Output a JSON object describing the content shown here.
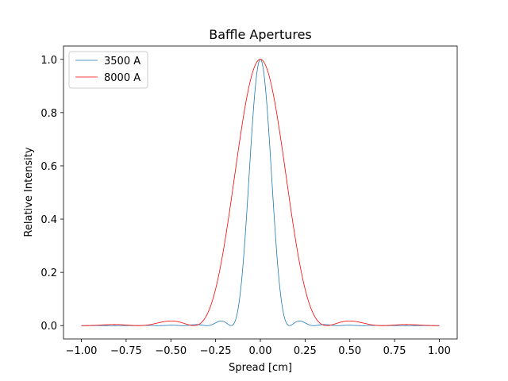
{
  "chart_data": {
    "type": "line",
    "title": "Baffle Apertures",
    "xlabel": "Spread [cm]",
    "ylabel": "Relative Intensity",
    "xlim": [
      -1.1,
      1.1
    ],
    "ylim": [
      -0.05,
      1.05
    ],
    "grid": false,
    "legend_position": "top-left",
    "xticks": [
      -1.0,
      -0.75,
      -0.5,
      -0.25,
      0.0,
      0.25,
      0.5,
      0.75,
      1.0
    ],
    "xtick_labels": [
      "−1.00",
      "−0.75",
      "−0.50",
      "−0.25",
      "0.00",
      "0.25",
      "0.50",
      "0.75",
      "1.00"
    ],
    "yticks": [
      0.0,
      0.2,
      0.4,
      0.6,
      0.8,
      1.0
    ],
    "ytick_labels": [
      "0.0",
      "0.2",
      "0.4",
      "0.6",
      "0.8",
      "1.0"
    ],
    "x_range": [
      -1.0,
      1.0
    ],
    "series": [
      {
        "name": "3500 A",
        "color": "#1f77b4",
        "model": "airy_pattern",
        "first_zero": 0.163,
        "peak": 1.0
      },
      {
        "name": "8000 A",
        "color": "#ff0000",
        "model": "airy_pattern",
        "first_zero": 0.372,
        "peak": 1.0
      }
    ]
  }
}
